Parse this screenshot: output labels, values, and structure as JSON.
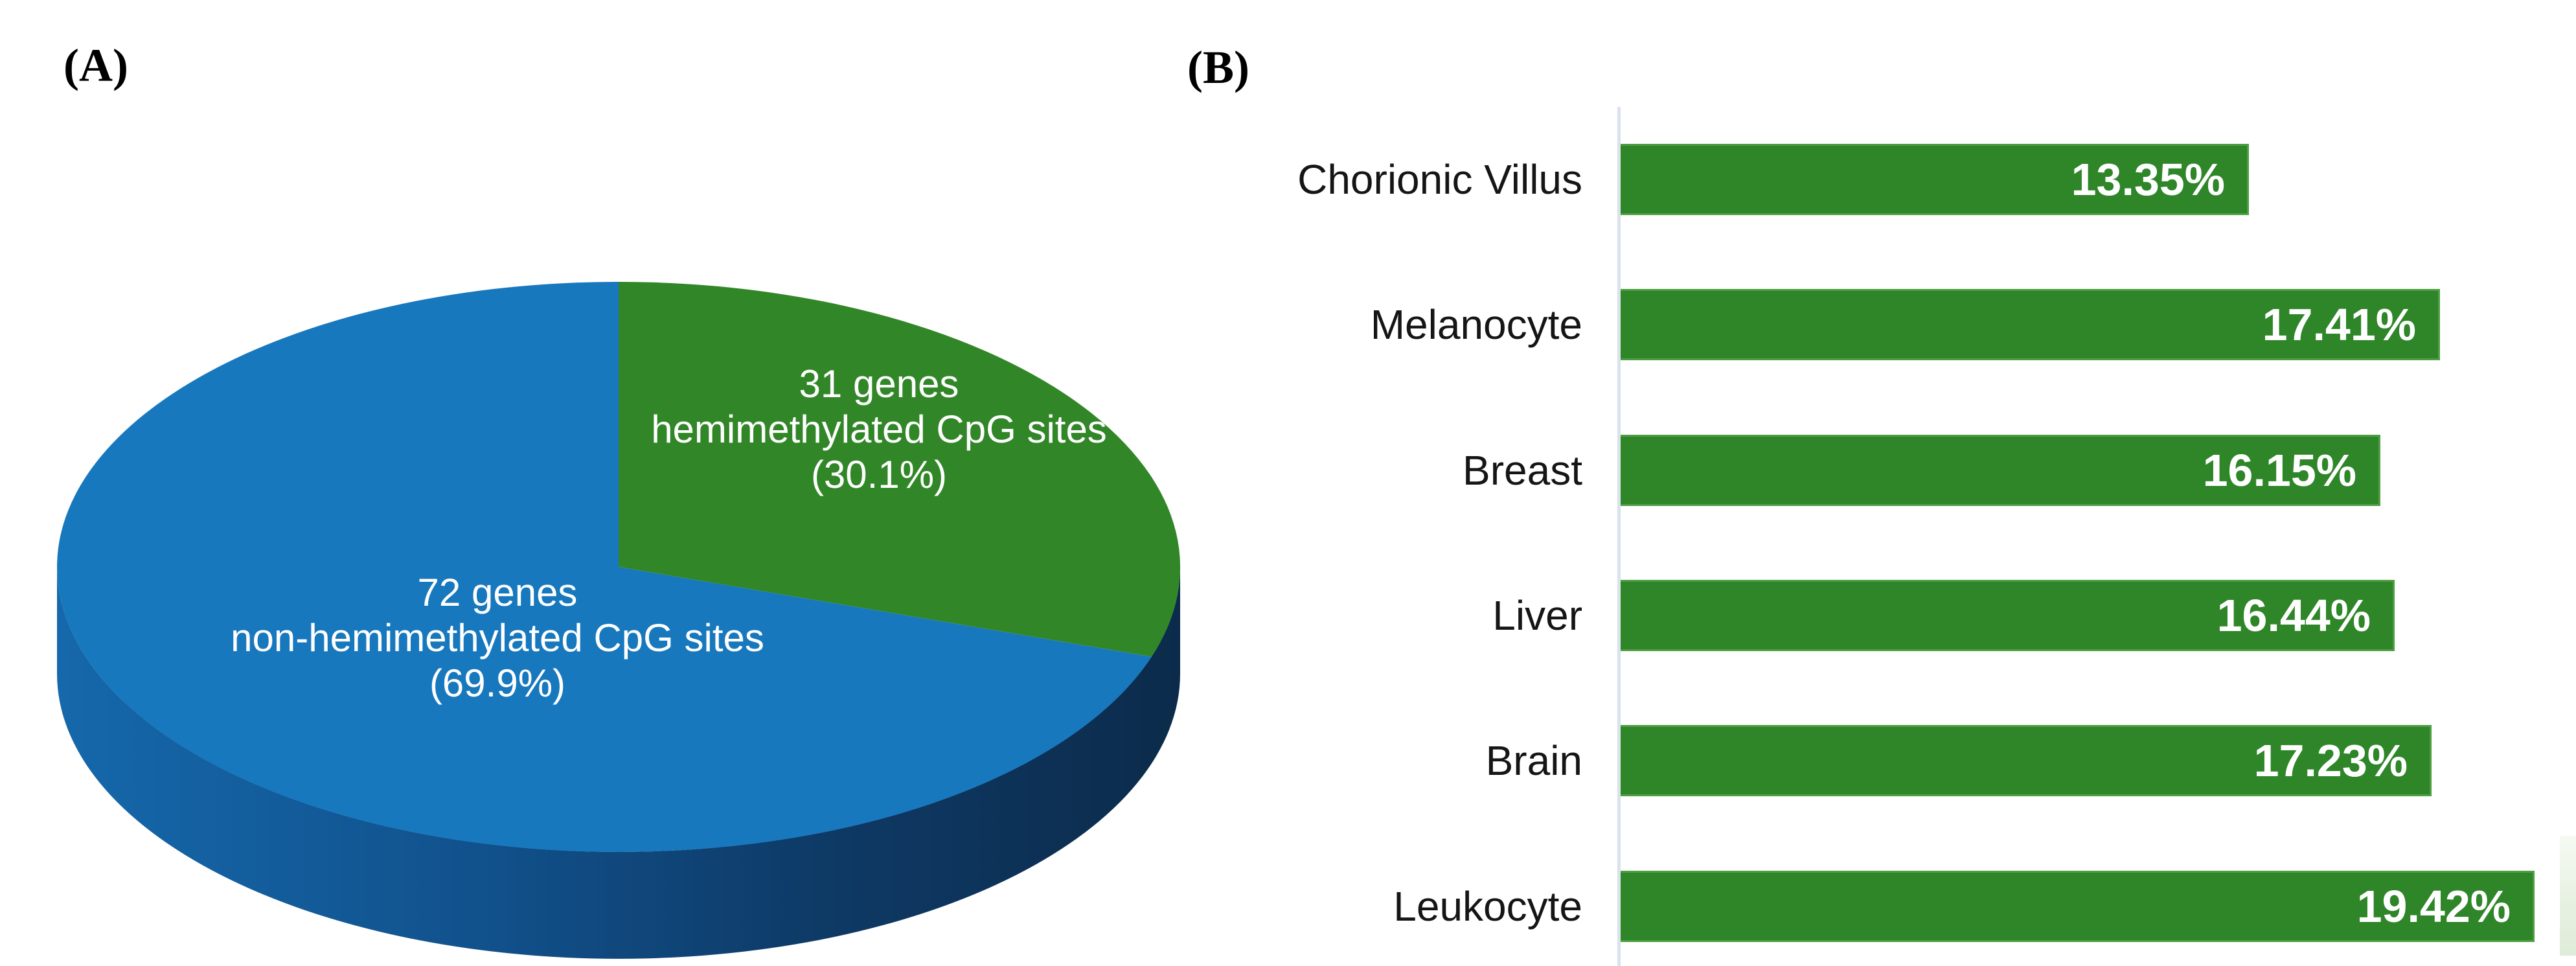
{
  "panelA": {
    "tag": "(A)",
    "colors": {
      "pie_green": "#318727",
      "pie_blue": "#1878BE",
      "side_gradient": [
        "#1568AB",
        "#11518C",
        "#0E3A66",
        "#0C2B4B"
      ]
    }
  },
  "panelB": {
    "tag": "(B)",
    "colors": {
      "bar_green": "#2E8628",
      "axis_line": "#DAE2EC",
      "value_text": "#FFFFFF",
      "category_text": "#151515"
    }
  },
  "chart_data": [
    {
      "type": "pie",
      "style": "3d-exploded-none",
      "title": "",
      "start_angle": "12 o'clock",
      "direction": "clockwise",
      "slices": [
        {
          "name": "hemimethylated",
          "genes": 31,
          "pct": 30.1,
          "color": "#318727",
          "label_lines": [
            "31 genes",
            "hemimethylated CpG sites",
            "(30.1%)"
          ]
        },
        {
          "name": "non-hemimethylated",
          "genes": 72,
          "pct": 69.9,
          "color": "#1878BE",
          "label_lines": [
            "72 genes",
            "non-hemimethylated CpG sites",
            "(69.9%)"
          ]
        }
      ],
      "legend": "none"
    },
    {
      "type": "bar",
      "orientation": "horizontal",
      "title": "",
      "xlabel": "",
      "ylabel": "",
      "categories": [
        "Chorionic Villus",
        "Melanocyte",
        "Breast",
        "Liver",
        "Brain",
        "Leukocyte"
      ],
      "values": [
        13.35,
        17.41,
        16.15,
        16.44,
        17.23,
        19.42
      ],
      "value_labels": [
        "13.35%",
        "17.41%",
        "16.15%",
        "16.44%",
        "17.23%",
        "19.42%"
      ],
      "bar_color": "#2E8628",
      "xlim": [
        0,
        20.3
      ],
      "grid": "off",
      "legend": "none",
      "value_label_position": "inside-end"
    }
  ]
}
